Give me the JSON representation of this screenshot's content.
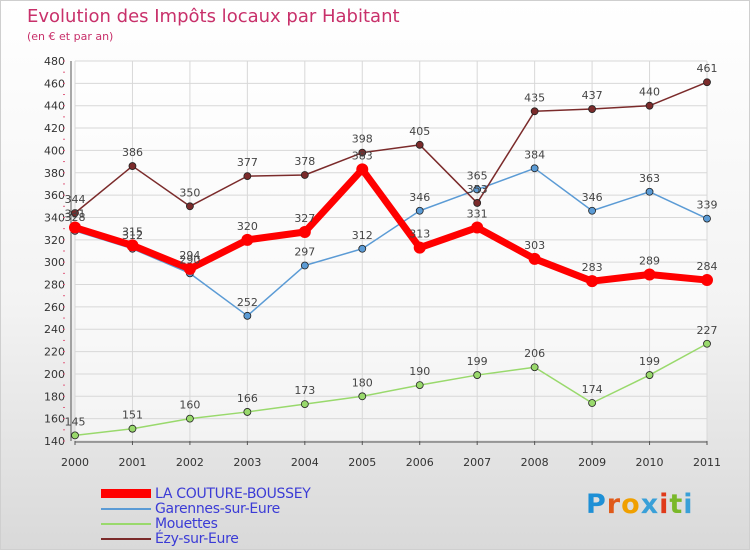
{
  "title": "Evolution des Impôts locaux par Habitant",
  "subtitle": "(en € et par an)",
  "logo": {
    "letters": [
      "P",
      "r",
      "o",
      "x",
      "i",
      "t",
      "i"
    ],
    "colors": [
      "#1e90d6",
      "#e05a1a",
      "#f0a000",
      "#3aa0d8",
      "#e03a1a",
      "#7ab82a",
      "#3aa0d8"
    ]
  },
  "colors": {
    "title": "#c8306a",
    "legend_text": "#3b3bd6"
  },
  "chart_data": {
    "type": "line",
    "x": [
      "2000",
      "2001",
      "2002",
      "2003",
      "2004",
      "2005",
      "2006",
      "2007",
      "2008",
      "2009",
      "2010",
      "2011"
    ],
    "ylim": [
      140,
      480
    ],
    "yticks": [
      140,
      160,
      180,
      200,
      220,
      240,
      260,
      280,
      300,
      320,
      340,
      360,
      380,
      400,
      420,
      440,
      460,
      480
    ],
    "grid": true,
    "legend_position": "bottom-left",
    "series": [
      {
        "name": "LA COUTURE-BOUSSEY",
        "color": "#ff0000",
        "values": [
          331,
          315,
          294,
          320,
          327,
          383,
          313,
          331,
          303,
          283,
          289,
          284
        ]
      },
      {
        "name": "Garennes-sur-Eure",
        "color": "#5b9bd5",
        "values": [
          328,
          312,
          290,
          252,
          297,
          312,
          346,
          365,
          384,
          346,
          363,
          339
        ]
      },
      {
        "name": "Mouettes",
        "color": "#99d96c",
        "values": [
          145,
          151,
          160,
          166,
          173,
          180,
          190,
          199,
          206,
          174,
          199,
          227
        ]
      },
      {
        "name": "Ézy-sur-Eure",
        "color": "#7b2b2b",
        "values": [
          344,
          386,
          350,
          377,
          378,
          398,
          405,
          353,
          435,
          437,
          440,
          461
        ]
      }
    ]
  }
}
